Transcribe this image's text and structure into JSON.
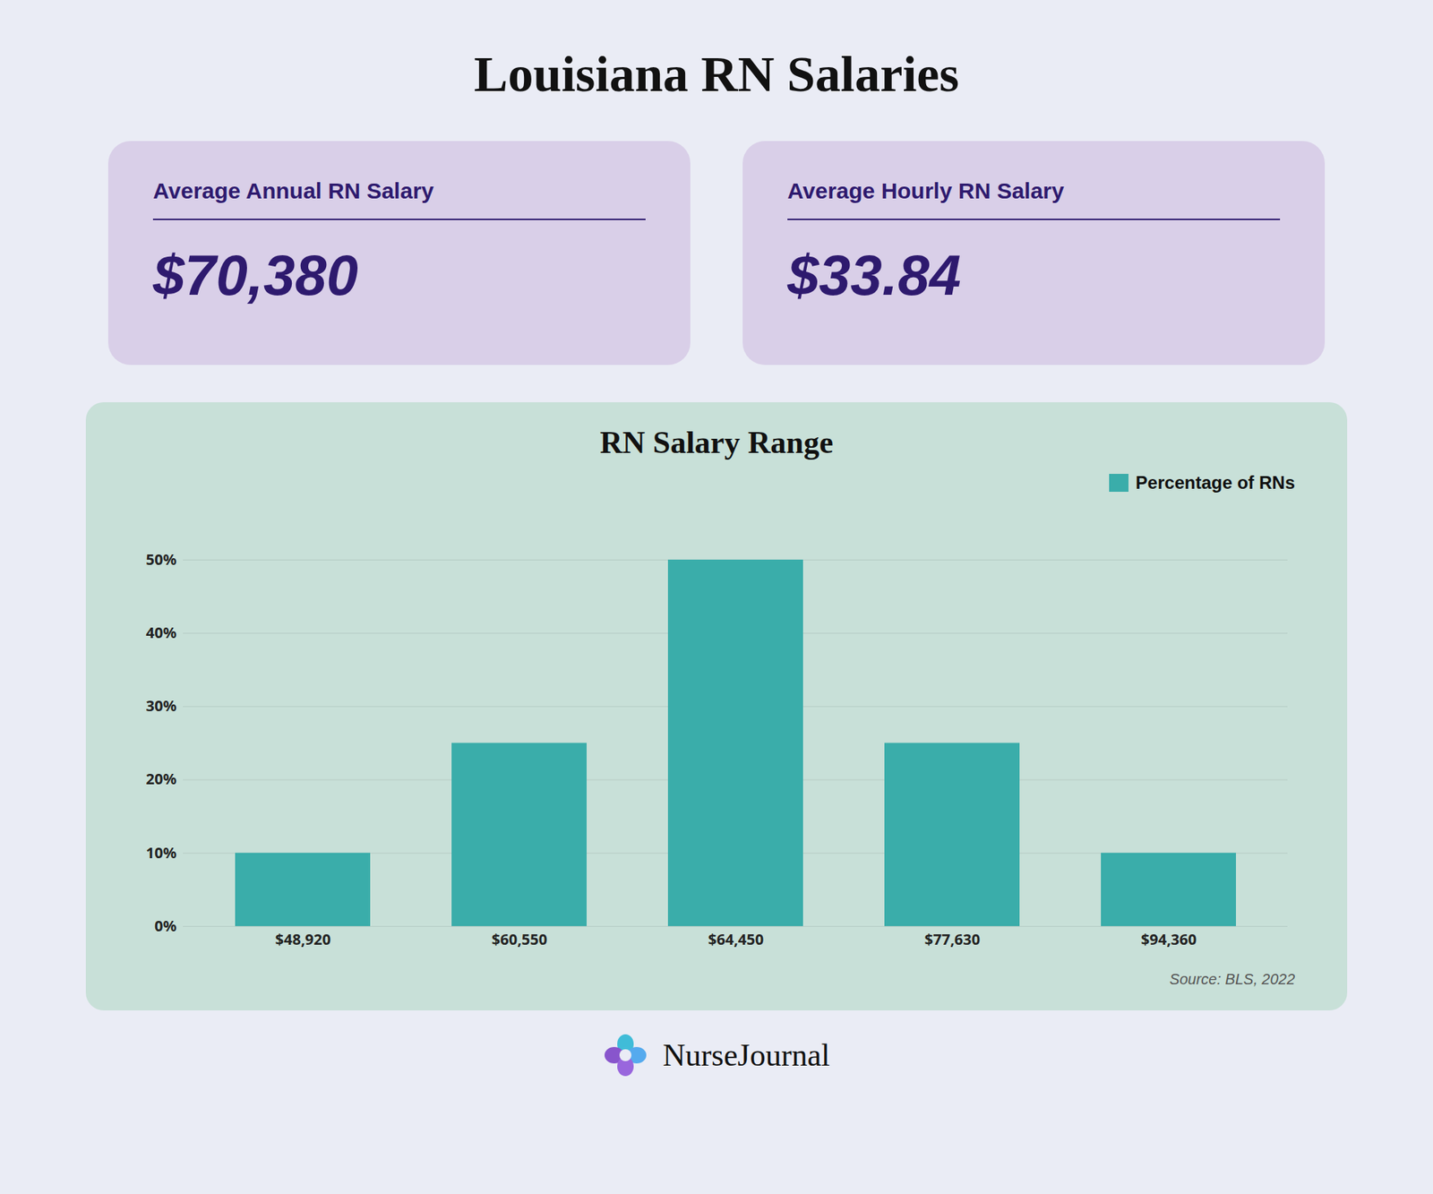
{
  "chart_data": {
    "type": "bar",
    "title": "Louisiana RN Salaries",
    "subtitle": "RN Salary Range",
    "annotations": [
      "Average Annual RN Salary",
      "$70,380",
      "Average Hourly RN Salary",
      "$33.84",
      "Source: BLS, 2022",
      "NurseJournal"
    ],
    "categories": [
      "$48,920",
      "$60,550",
      "$64,450",
      "$77,630",
      "$94,360"
    ],
    "series": [
      {
        "name": "Percentage of RNs",
        "color": "#3aadaa",
        "values": [
          10,
          25,
          50,
          25,
          10
        ]
      }
    ],
    "ylim": [
      0,
      56
    ],
    "yticks": [
      {
        "value": 0,
        "label": "0%"
      },
      {
        "value": 10,
        "label": "10%"
      },
      {
        "value": 20,
        "label": "20%"
      },
      {
        "value": 30,
        "label": "30%"
      },
      {
        "value": 40,
        "label": "40%"
      },
      {
        "value": 50,
        "label": "50%"
      }
    ],
    "grid": true,
    "legend": "upper right"
  }
}
